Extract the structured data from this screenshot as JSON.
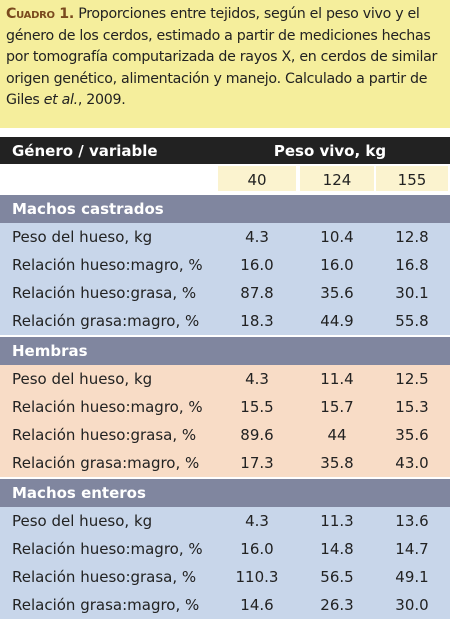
{
  "caption": {
    "label": "Cuadro 1.",
    "text": "Proporciones entre tejidos, según el peso vivo y el género de los cerdos, estimado a partir de mediciones hechas por tomografía computarizada de rayos X, en cerdos de similar origen genético, alimentación y manejo. Calculado a partir de Giles ",
    "italic": "et al.",
    "end": ", 2009."
  },
  "table": {
    "header": [
      "Género / variable",
      "Peso vivo, kg"
    ],
    "columns": [
      "40",
      "124",
      "155"
    ],
    "groups": [
      {
        "name": "Machos castrados",
        "rows": [
          [
            "Peso del hueso, kg",
            "4.3",
            "10.4",
            "12.8"
          ],
          [
            "Relación hueso:magro, %",
            "16.0",
            "16.0",
            "16.8"
          ],
          [
            "Relación hueso:grasa, %",
            "87.8",
            "35.6",
            "30.1"
          ],
          [
            "Relación grasa:magro, %",
            "18.3",
            "44.9",
            "55.8"
          ]
        ]
      },
      {
        "name": "Hembras",
        "rows": [
          [
            "Peso del hueso, kg",
            "4.3",
            "11.4",
            "12.5"
          ],
          [
            "Relación hueso:magro, %",
            "15.5",
            "15.7",
            "15.3"
          ],
          [
            "Relación hueso:grasa, %",
            "89.6",
            "44",
            "35.6"
          ],
          [
            "Relación grasa:magro, %",
            "17.3",
            "35.8",
            "43.0"
          ]
        ]
      },
      {
        "name": "Machos enteros",
        "rows": [
          [
            "Peso del hueso, kg",
            "4.3",
            "11.3",
            "13.6"
          ],
          [
            "Relación hueso:magro, %",
            "16.0",
            "14.8",
            "14.7"
          ],
          [
            "Relación hueso:grasa, %",
            "110.3",
            "56.5",
            "49.1"
          ],
          [
            "Relación grasa:magro, %",
            "14.6",
            "26.3",
            "30.0"
          ]
        ]
      }
    ]
  }
}
